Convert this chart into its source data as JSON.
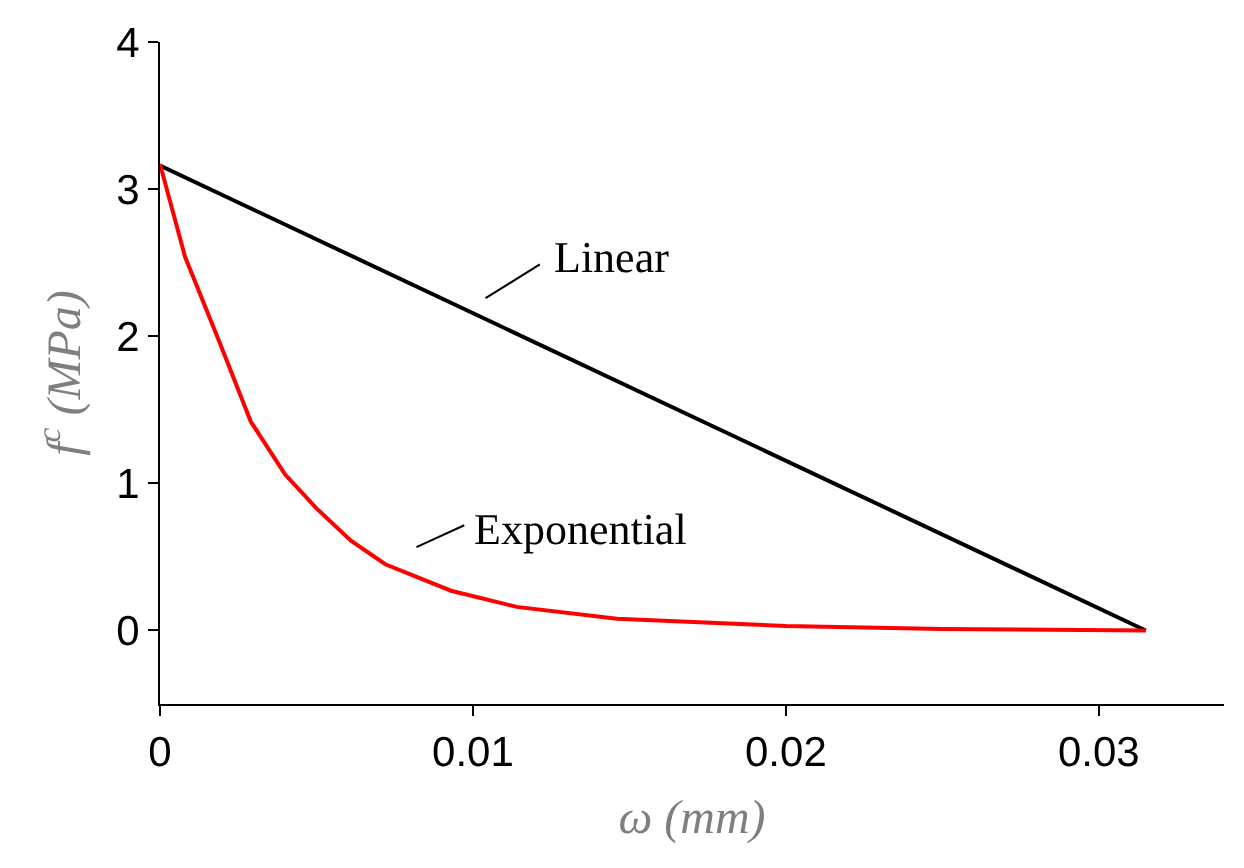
{
  "chart_data": {
    "type": "line",
    "xlabel": "ω (mm)",
    "ylabel": "f$^{c}$ (MPa)",
    "xlim": [
      0,
      0.034
    ],
    "xticks": [
      0,
      0.01,
      0.02,
      0.03
    ],
    "ylim": [
      -0.5,
      4
    ],
    "yticks": [
      0,
      1,
      2,
      3,
      4
    ],
    "marker": "none",
    "line_style": "solid",
    "series": [
      {
        "color": "#000000",
        "x": [
          0,
          0.0315
        ],
        "values": [
          3.16,
          0
        ]
      },
      {
        "color": "#ff0000",
        "x": [
          0,
          0.00028,
          0.0008,
          0.0019,
          0.0029,
          0.004,
          0.005,
          0.0061,
          0.0072,
          0.0093,
          0.0114,
          0.0146,
          0.02,
          0.025,
          0.0315
        ],
        "values": [
          3.17,
          2.95,
          2.54,
          1.96,
          1.42,
          1.06,
          0.83,
          0.61,
          0.45,
          0.27,
          0.16,
          0.08,
          0.03,
          0.01,
          0
        ]
      }
    ],
    "annotations": [
      "Linear",
      "Exponential"
    ]
  }
}
